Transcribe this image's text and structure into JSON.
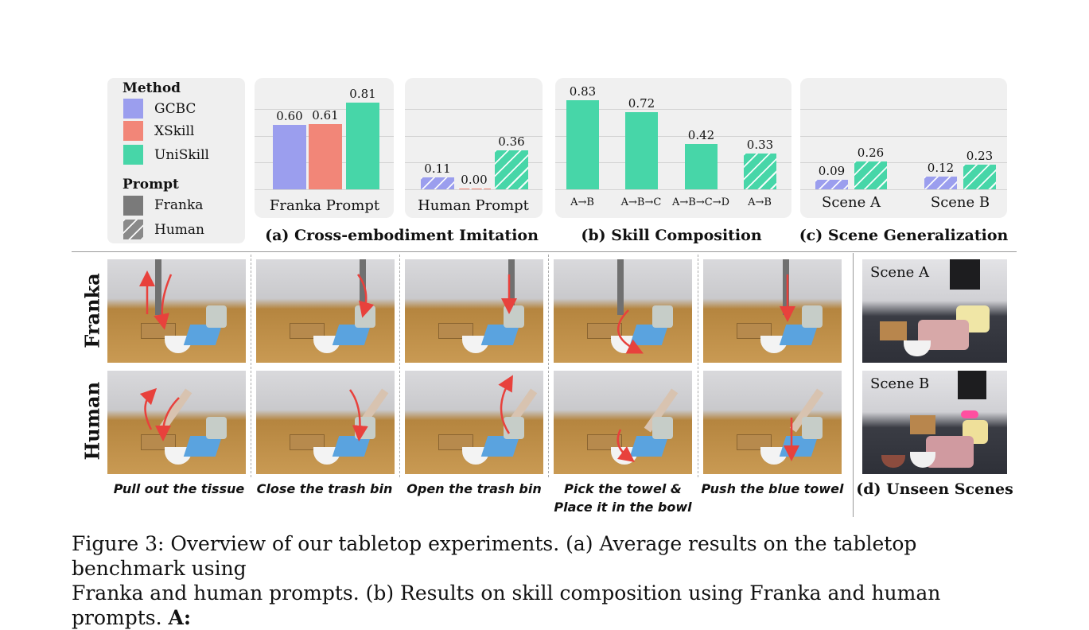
{
  "legend": {
    "method_title": "Method",
    "methods": [
      {
        "label": "GCBC",
        "color": "#9b9eee"
      },
      {
        "label": "XSkill",
        "color": "#f28678"
      },
      {
        "label": "UniSkill",
        "color": "#47d6a8"
      }
    ],
    "prompt_title": "Prompt",
    "prompts": [
      {
        "label": "Franka",
        "style": "solid"
      },
      {
        "label": "Human",
        "style": "hatched"
      }
    ]
  },
  "chart_data": [
    {
      "type": "bar",
      "panel": "a",
      "categories": [
        "Franka Prompt",
        "Human Prompt"
      ],
      "series": [
        {
          "name": "GCBC",
          "values": [
            0.6,
            0.11
          ]
        },
        {
          "name": "XSkill",
          "values": [
            0.61,
            0.0
          ]
        },
        {
          "name": "UniSkill",
          "values": [
            0.81,
            0.36
          ]
        }
      ],
      "value_labels": [
        [
          "0.60",
          "0.61",
          "0.81"
        ],
        [
          "0.11",
          "0.00",
          "0.36"
        ]
      ],
      "title": "(a) Cross-embodiment Imitation",
      "ylim": [
        0,
        1
      ]
    },
    {
      "type": "bar",
      "panel": "b",
      "categories": [
        "A→B",
        "A→B→C",
        "A→B→C→D",
        "A→B"
      ],
      "values": [
        0.83,
        0.72,
        0.42,
        0.33
      ],
      "value_labels": [
        "0.83",
        "0.72",
        "0.42",
        "0.33"
      ],
      "prompt": [
        "Franka",
        "Franka",
        "Franka",
        "Human"
      ],
      "title": "(b) Skill Composition",
      "ylim": [
        0,
        1
      ]
    },
    {
      "type": "bar",
      "panel": "c",
      "categories": [
        "Scene A",
        "Scene B"
      ],
      "series": [
        {
          "name": "GCBC",
          "values": [
            0.09,
            0.12
          ]
        },
        {
          "name": "UniSkill",
          "values": [
            0.26,
            0.23
          ]
        }
      ],
      "value_labels": [
        [
          "0.09",
          "0.26"
        ],
        [
          "0.12",
          "0.23"
        ]
      ],
      "title": "(c) Scene Generalization",
      "ylim": [
        0,
        1
      ]
    }
  ],
  "row_labels": [
    "Franka",
    "Human"
  ],
  "tasks": [
    "Pull out the tissue",
    "Close the trash bin",
    "Open the trash bin",
    "Pick the towel &",
    "Place it in the bowl",
    "Push the blue towel"
  ],
  "scenes": {
    "a": "Scene A",
    "b": "Scene B",
    "title": "(d) Unseen Scenes"
  },
  "caption": {
    "line1": "Figure 3: Overview of our tabletop experiments. (a) Average results on the tabletop benchmark using",
    "line2a": "Franka and human prompts. (b) Results on skill composition using Franka and human prompts.",
    "line2b": "A:"
  }
}
